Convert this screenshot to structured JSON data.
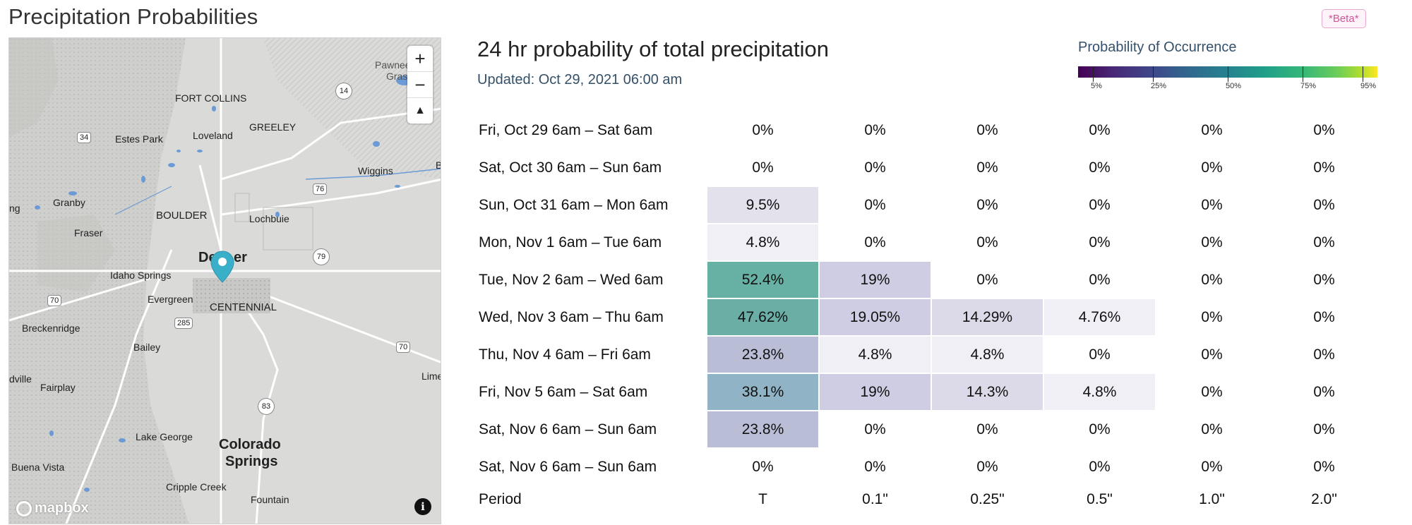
{
  "page": {
    "title": "Precipitation Probabilities",
    "badge": "*Beta*"
  },
  "map": {
    "zoom_in": "+",
    "zoom_out": "−",
    "compass": "▲",
    "attribution": "mapbox",
    "info": "i",
    "labels": [
      "FORT COLLINS",
      "Pawnee",
      "Gras",
      "14",
      "GREELEY",
      "Loveland",
      "34",
      "Estes Park",
      "Wiggins",
      "B",
      "76",
      "Granby",
      "ng",
      "BOULDER",
      "Lochbuie",
      "Fraser",
      "79",
      "Den",
      "er",
      "Idaho Springs",
      "70",
      "Evergreen",
      "CENTENNIAL",
      "285",
      "Breckenridge",
      "Bailey",
      "70",
      "dville",
      "Fairplay",
      "83",
      "Lime",
      "Lake George",
      "Colorado",
      "Springs",
      "Buena Vista",
      "Cripple Creek",
      "Fountain"
    ]
  },
  "chart": {
    "title": "24 hr probability of total precipitation",
    "updated": "Updated: Oct 29, 2021 06:00 am",
    "legend_title": "Probability of Occurrence",
    "legend_ticks": [
      "5%",
      "25%",
      "50%",
      "75%",
      "95%"
    ],
    "footer_label": "Period",
    "columns": [
      "T",
      "0.1\"",
      "0.25\"",
      "0.5\"",
      "1.0\"",
      "2.0\""
    ],
    "rows": [
      {
        "period": "Fri, Oct 29 6am – Sat 6am",
        "values": [
          "0%",
          "0%",
          "0%",
          "0%",
          "0%",
          "0%"
        ],
        "colors": [
          "",
          "",
          "",
          "",
          "",
          ""
        ]
      },
      {
        "period": "Sat, Oct 30 6am – Sun 6am",
        "values": [
          "0%",
          "0%",
          "0%",
          "0%",
          "0%",
          "0%"
        ],
        "colors": [
          "",
          "",
          "",
          "",
          "",
          ""
        ]
      },
      {
        "period": "Sun, Oct 31 6am – Mon 6am",
        "values": [
          "9.5%",
          "0%",
          "0%",
          "0%",
          "0%",
          "0%"
        ],
        "colors": [
          "#e3e1eb",
          "",
          "",
          "",
          "",
          ""
        ]
      },
      {
        "period": "Mon, Nov 1 6am – Tue 6am",
        "values": [
          "4.8%",
          "0%",
          "0%",
          "0%",
          "0%",
          "0%"
        ],
        "colors": [
          "#f0eff5",
          "",
          "",
          "",
          "",
          ""
        ]
      },
      {
        "period": "Tue, Nov 2 6am – Wed 6am",
        "values": [
          "52.4%",
          "19%",
          "0%",
          "0%",
          "0%",
          "0%"
        ],
        "colors": [
          "#67b0a4",
          "#cfcde3",
          "",
          "",
          "",
          ""
        ]
      },
      {
        "period": "Wed, Nov 3 6am – Thu 6am",
        "values": [
          "47.62%",
          "19.05%",
          "14.29%",
          "4.76%",
          "0%",
          "0%"
        ],
        "colors": [
          "#6aaea5",
          "#cfcde3",
          "#dcdae8",
          "#f0eff5",
          "",
          ""
        ]
      },
      {
        "period": "Thu, Nov 4 6am – Fri 6am",
        "values": [
          "23.8%",
          "4.8%",
          "4.8%",
          "0%",
          "0%",
          "0%"
        ],
        "colors": [
          "#b9bed6",
          "#f0eff5",
          "#f0eff5",
          "",
          "",
          ""
        ]
      },
      {
        "period": "Fri, Nov 5 6am – Sat 6am",
        "values": [
          "38.1%",
          "19%",
          "14.3%",
          "4.8%",
          "0%",
          "0%"
        ],
        "colors": [
          "#90b4c5",
          "#cfcde3",
          "#dcdae8",
          "#f0eff5",
          "",
          ""
        ]
      },
      {
        "period": "Sat, Nov 6 6am – Sun 6am",
        "values": [
          "23.8%",
          "0%",
          "0%",
          "0%",
          "0%",
          "0%"
        ],
        "colors": [
          "#b9bed6",
          "",
          "",
          "",
          "",
          ""
        ]
      },
      {
        "period": "Sat, Nov 6 6am – Sun 6am",
        "values": [
          "0%",
          "0%",
          "0%",
          "0%",
          "0%",
          "0%"
        ],
        "colors": [
          "",
          "",
          "",
          "",
          "",
          ""
        ]
      }
    ]
  }
}
